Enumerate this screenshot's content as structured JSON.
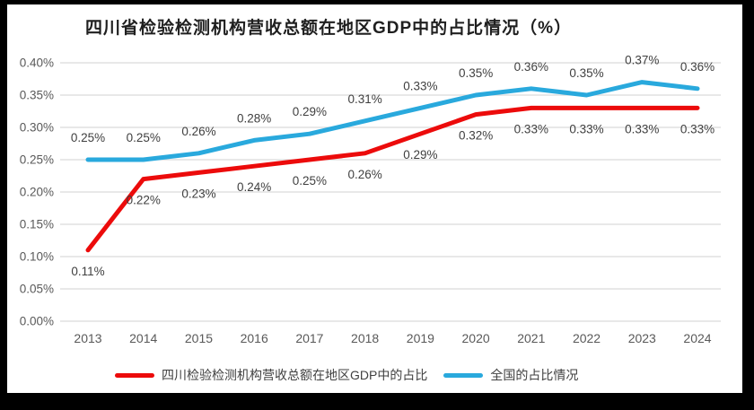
{
  "window": {
    "frame_color": "#000000",
    "background_color": "#ffffff"
  },
  "chart_data": {
    "type": "line",
    "title": "四川省检验检测机构营收总额在地区GDP中的占比情况（%）",
    "categories": [
      "2013",
      "2014",
      "2015",
      "2016",
      "2017",
      "2018",
      "2019",
      "2020",
      "2021",
      "2022",
      "2023",
      "2024"
    ],
    "series": [
      {
        "name": "四川检验检测机构营收总额在地区GDP中的占比",
        "color": "#ec0b0b",
        "label_side": "below",
        "values": [
          0.11,
          0.22,
          0.23,
          0.24,
          0.25,
          0.26,
          0.29,
          0.32,
          0.33,
          0.33,
          0.33,
          0.33
        ],
        "labels": [
          "0.11%",
          "0.22%",
          "0.23%",
          "0.24%",
          "0.25%",
          "0.26%",
          "0.29%",
          "0.32%",
          "0.33%",
          "0.33%",
          "0.33%",
          "0.33%"
        ]
      },
      {
        "name": "全国的占比情况",
        "color": "#29a9dd",
        "label_side": "above",
        "values": [
          0.25,
          0.25,
          0.26,
          0.28,
          0.29,
          0.31,
          0.33,
          0.35,
          0.36,
          0.35,
          0.37,
          0.36
        ],
        "labels": [
          "0.25%",
          "0.25%",
          "0.26%",
          "0.28%",
          "0.29%",
          "0.31%",
          "0.33%",
          "0.35%",
          "0.36%",
          "0.35%",
          "0.37%",
          "0.36%"
        ]
      }
    ],
    "yticks": [
      "0.40%",
      "0.35%",
      "0.30%",
      "0.25%",
      "0.20%",
      "0.15%",
      "0.10%",
      "0.05%",
      "0.00%"
    ],
    "ylim": [
      0,
      0.4
    ],
    "y_step": 0.05,
    "grid": true,
    "legend_position": "bottom",
    "colors": {
      "gridline": "#d9d9d9",
      "axis_text": "#595959",
      "data_label_text": "#3f3f3f",
      "title_text": "#1f1f1f"
    }
  }
}
